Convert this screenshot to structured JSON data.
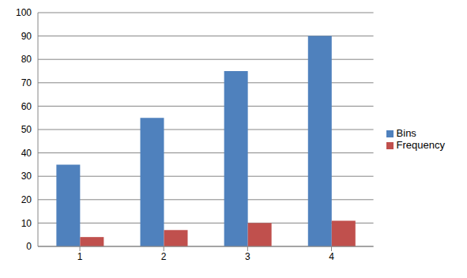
{
  "chart_data": {
    "type": "bar",
    "categories": [
      "1",
      "2",
      "3",
      "4"
    ],
    "series": [
      {
        "name": "Bins",
        "color": "#4f81bd",
        "values": [
          35,
          55,
          75,
          90
        ]
      },
      {
        "name": "Frequency",
        "color": "#c0504d",
        "values": [
          4,
          7,
          10,
          11
        ]
      }
    ],
    "ylim": [
      0,
      100
    ],
    "yticks": [
      0,
      10,
      20,
      30,
      40,
      50,
      60,
      70,
      80,
      90,
      100
    ],
    "grid": true,
    "legend": "right"
  }
}
